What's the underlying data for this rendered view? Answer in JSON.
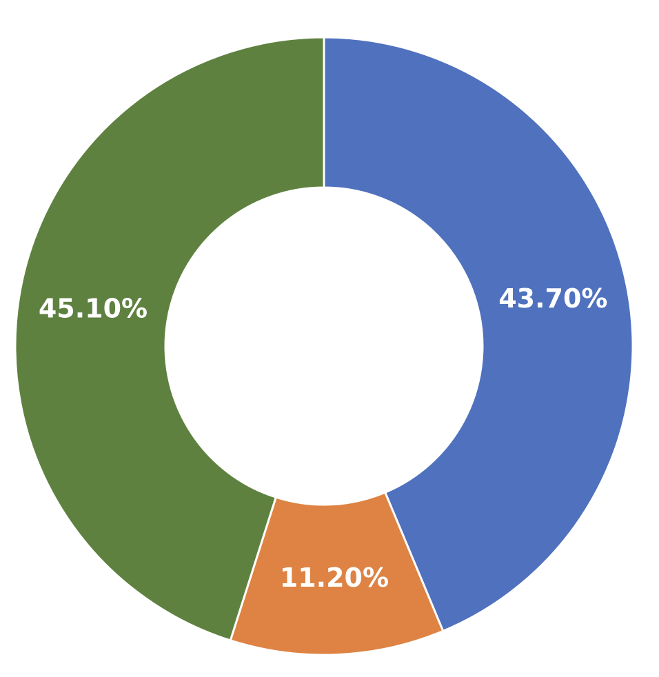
{
  "chart_data": {
    "type": "donut",
    "values": [
      43.7,
      11.2,
      45.1
    ],
    "value_labels": [
      "43.70%",
      "11.20%",
      "45.10%"
    ],
    "colors": [
      "#4f71be",
      "#de8344",
      "#5f8140"
    ]
  }
}
